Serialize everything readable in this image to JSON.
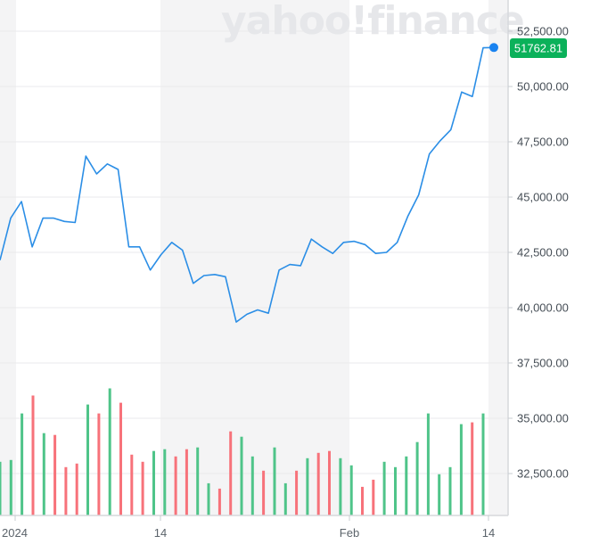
{
  "watermark": "yahoo!finance",
  "colors": {
    "line": "#2b8ee6",
    "up_volume": "#4fc489",
    "down_volume": "#f7727a",
    "price_tag_bg": "#0bb15a",
    "shade": "#f4f4f5",
    "grid": "#eaeaec",
    "axis": "#d6d8dc"
  },
  "current_price": {
    "label": "51762.81",
    "value": 51762.81
  },
  "chart_data": {
    "type": "line",
    "title": "",
    "xlabel": "",
    "ylabel": "",
    "x_ticks": [
      "2024",
      "14",
      "Feb",
      "14"
    ],
    "y_ticks": [
      "52,500.00",
      "50,000.00",
      "47,500.00",
      "45,000.00",
      "42,500.00",
      "40,000.00",
      "37,500.00",
      "35,000.00",
      "32,500.00"
    ],
    "ylim": [
      30500,
      53000
    ],
    "grid": true,
    "legend": "none",
    "series": [
      {
        "name": "Close",
        "values": [
          42150,
          44050,
          44800,
          42750,
          44050,
          44050,
          43900,
          43850,
          46850,
          46050,
          46500,
          46250,
          42750,
          42750,
          41700,
          42400,
          42950,
          42600,
          41100,
          41450,
          41500,
          41400,
          39350,
          39700,
          39900,
          39750,
          41700,
          41950,
          41900,
          43100,
          42750,
          42450,
          42950,
          43000,
          42850,
          42450,
          42500,
          42950,
          44150,
          45100,
          46950,
          47550,
          48050,
          49750,
          49550,
          51750,
          51762.81
        ]
      },
      {
        "name": "Volume",
        "type": "bar",
        "relative_heights": [
          0.3,
          0.31,
          0.57,
          0.67,
          0.46,
          0.45,
          0.27,
          0.29,
          0.62,
          0.57,
          0.71,
          0.63,
          0.34,
          0.3,
          0.36,
          0.37,
          0.33,
          0.37,
          0.38,
          0.18,
          0.15,
          0.47,
          0.44,
          0.33,
          0.25,
          0.38,
          0.18,
          0.25,
          0.32,
          0.35,
          0.36,
          0.32,
          0.28,
          0.16,
          0.2,
          0.3,
          0.27,
          0.33,
          0.41,
          0.57,
          0.23,
          0.27,
          0.51,
          0.52,
          0.57
        ],
        "directions": [
          "up",
          "up",
          "up",
          "down",
          "up",
          "down",
          "down",
          "down",
          "up",
          "down",
          "up",
          "down",
          "down",
          "down",
          "up",
          "up",
          "down",
          "down",
          "up",
          "up",
          "down",
          "down",
          "up",
          "up",
          "down",
          "up",
          "up",
          "down",
          "up",
          "down",
          "down",
          "up",
          "up",
          "down",
          "down",
          "up",
          "up",
          "up",
          "up",
          "up",
          "up",
          "up",
          "up",
          "down",
          "up"
        ]
      }
    ]
  }
}
